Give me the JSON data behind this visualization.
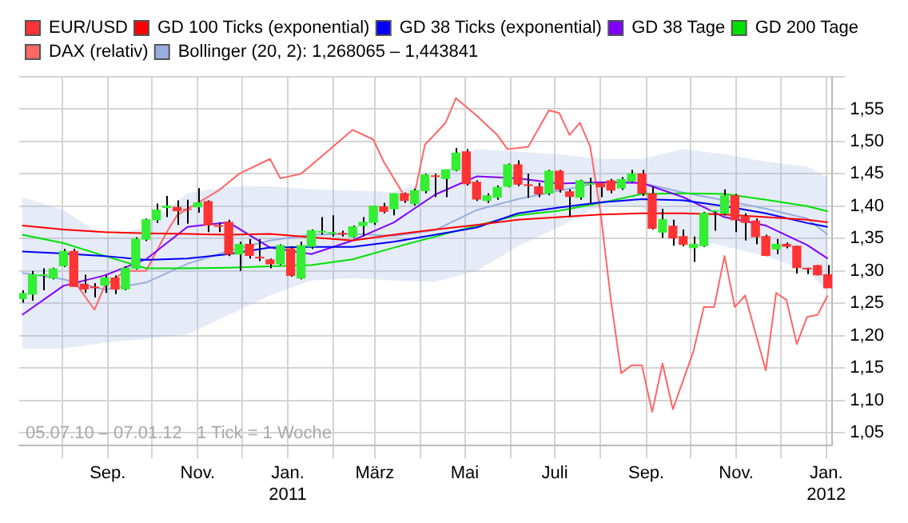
{
  "chart_data": {
    "type": "candlestick",
    "x": [
      "2010-07-05",
      "2010-07-12",
      "2010-07-19",
      "2010-07-26",
      "2010-08-02",
      "2010-08-09",
      "2010-08-16",
      "2010-08-23",
      "2010-08-30",
      "2010-09-06",
      "2010-09-13",
      "2010-09-20",
      "2010-09-27",
      "2010-10-04",
      "2010-10-11",
      "2010-10-18",
      "2010-10-25",
      "2010-11-01",
      "2010-11-08",
      "2010-11-15",
      "2010-11-22",
      "2010-11-29",
      "2010-12-06",
      "2010-12-13",
      "2010-12-20",
      "2010-12-27",
      "2011-01-03",
      "2011-01-10",
      "2011-01-17",
      "2011-01-24",
      "2011-01-31",
      "2011-02-07",
      "2011-02-14",
      "2011-02-21",
      "2011-02-28",
      "2011-03-07",
      "2011-03-14",
      "2011-03-21",
      "2011-03-28",
      "2011-04-04",
      "2011-04-11",
      "2011-04-18",
      "2011-04-25",
      "2011-05-02",
      "2011-05-09",
      "2011-05-16",
      "2011-05-23",
      "2011-05-30",
      "2011-06-06",
      "2011-06-13",
      "2011-06-20",
      "2011-06-27",
      "2011-07-04",
      "2011-07-11",
      "2011-07-18",
      "2011-07-25",
      "2011-08-01",
      "2011-08-08",
      "2011-08-15",
      "2011-08-22",
      "2011-08-29",
      "2011-09-05",
      "2011-09-12",
      "2011-09-19",
      "2011-09-26",
      "2011-10-03",
      "2011-10-10",
      "2011-10-17",
      "2011-10-24",
      "2011-10-31",
      "2011-11-07",
      "2011-11-14",
      "2011-11-21",
      "2011-11-28",
      "2011-12-05",
      "2011-12-12",
      "2011-12-19",
      "2011-12-26",
      "2012-01-02"
    ],
    "xlim": [
      "2010-07-03",
      "2012-01-05"
    ],
    "xticks": [
      {
        "value": "2010-08-01",
        "label": null
      },
      {
        "value": "2010-09-01",
        "label": "Sep."
      },
      {
        "value": "2010-10-01",
        "label": null
      },
      {
        "value": "2010-11-01",
        "label": "Nov."
      },
      {
        "value": "2010-12-01",
        "label": null
      },
      {
        "value": "2011-01-01",
        "label": "Jan.\n2011"
      },
      {
        "value": "2011-02-01",
        "label": null
      },
      {
        "value": "2011-03-01",
        "label": "März"
      },
      {
        "value": "2011-04-01",
        "label": null
      },
      {
        "value": "2011-05-01",
        "label": "Mai"
      },
      {
        "value": "2011-06-01",
        "label": null
      },
      {
        "value": "2011-07-01",
        "label": "Juli"
      },
      {
        "value": "2011-08-01",
        "label": null
      },
      {
        "value": "2011-09-01",
        "label": "Sep."
      },
      {
        "value": "2011-10-01",
        "label": null
      },
      {
        "value": "2011-11-01",
        "label": "Nov."
      },
      {
        "value": "2011-12-01",
        "label": null
      },
      {
        "value": "2012-01-01",
        "label": "Jan.\n2012"
      }
    ],
    "ylim": [
      1.03,
      1.6
    ],
    "yticks": [
      {
        "value": 1.05,
        "label": "1,05"
      },
      {
        "value": 1.1,
        "label": "1,10"
      },
      {
        "value": 1.15,
        "label": "1,15"
      },
      {
        "value": 1.2,
        "label": "1,20"
      },
      {
        "value": 1.25,
        "label": "1,25"
      },
      {
        "value": 1.3,
        "label": "1,30"
      },
      {
        "value": 1.35,
        "label": "1,35"
      },
      {
        "value": 1.4,
        "label": "1,40"
      },
      {
        "value": 1.45,
        "label": "1,45"
      },
      {
        "value": 1.5,
        "label": "1,50"
      },
      {
        "value": 1.55,
        "label": "1,55"
      },
      {
        "value": 1.6,
        "label": null
      }
    ],
    "grid": true,
    "legend": "top left",
    "annotations": [
      "05.07.10 – 07.01.12   1 Tick = 1 Woche"
    ],
    "series": [
      {
        "name": "EUR/USD",
        "color": "#ff3333",
        "colors": [
          "#33ee33",
          "#33ee33",
          "#33ee33",
          "#33ee33",
          "#33ee33",
          "#ff3333",
          "#ff3333",
          "#ff3333",
          "#33ee33",
          "#ff3333",
          "#33ee33",
          "#33ee33",
          "#33ee33",
          "#33ee33",
          "#33ee33",
          "#ff3333",
          "#ff3333",
          "#33ee33",
          "#ff3333",
          "#ff3333",
          "#ff3333",
          "#33ee33",
          "#ff3333",
          "#ff3333",
          "#ff3333",
          "#33ee33",
          "#ff3333",
          "#33ee33",
          "#33ee33",
          "#33ee33",
          "#33ee33",
          "#ff3333",
          "#33ee33",
          "#33ee33",
          "#33ee33",
          "#ff3333",
          "#33ee33",
          "#ff3333",
          "#33ee33",
          "#33ee33",
          "#ff3333",
          "#33ee33",
          "#33ee33",
          "#ff3333",
          "#ff3333",
          "#33ee33",
          "#33ee33",
          "#33ee33",
          "#ff3333",
          "#ff3333",
          "#ff3333",
          "#33ee33",
          "#ff3333",
          "#ff3333",
          "#33ee33",
          "#33ee33",
          "#ff3333",
          "#ff3333",
          "#33ee33",
          "#33ee33",
          "#ff3333",
          "#ff3333",
          "#33ee33",
          "#ff3333",
          "#ff3333",
          "#33ee33",
          "#33ee33",
          "#33ee33",
          "#33ee33",
          "#ff3333",
          "#ff3333",
          "#ff3333",
          "#ff3333",
          "#33ee33",
          "#ff3333",
          "#ff3333",
          "#ff3333",
          "#ff3333",
          "#ff3333"
        ],
        "ohlc": [
          [
            1.257,
            1.27,
            1.251,
            1.265
          ],
          [
            1.264,
            1.3,
            1.254,
            1.294
          ],
          [
            1.293,
            1.304,
            1.27,
            1.294
          ],
          [
            1.289,
            1.305,
            1.287,
            1.303
          ],
          [
            1.308,
            1.334,
            1.306,
            1.33
          ],
          [
            1.33,
            1.334,
            1.276,
            1.276
          ],
          [
            1.279,
            1.294,
            1.266,
            1.272
          ],
          [
            1.275,
            1.281,
            1.259,
            1.274
          ],
          [
            1.278,
            1.293,
            1.266,
            1.289
          ],
          [
            1.289,
            1.293,
            1.264,
            1.272
          ],
          [
            1.272,
            1.307,
            1.27,
            1.304
          ],
          [
            1.304,
            1.352,
            1.302,
            1.349
          ],
          [
            1.349,
            1.381,
            1.346,
            1.379
          ],
          [
            1.379,
            1.404,
            1.374,
            1.394
          ],
          [
            1.398,
            1.416,
            1.383,
            1.4
          ],
          [
            1.398,
            1.409,
            1.371,
            1.393
          ],
          [
            1.395,
            1.41,
            1.373,
            1.395
          ],
          [
            1.399,
            1.428,
            1.39,
            1.405
          ],
          [
            1.407,
            1.409,
            1.36,
            1.371
          ],
          [
            1.37,
            1.375,
            1.36,
            1.369
          ],
          [
            1.375,
            1.379,
            1.323,
            1.326
          ],
          [
            1.326,
            1.345,
            1.3,
            1.341
          ],
          [
            1.341,
            1.349,
            1.319,
            1.324
          ],
          [
            1.321,
            1.349,
            1.315,
            1.32
          ],
          [
            1.317,
            1.319,
            1.304,
            1.311
          ],
          [
            1.311,
            1.341,
            1.309,
            1.339
          ],
          [
            1.334,
            1.338,
            1.291,
            1.293
          ],
          [
            1.289,
            1.345,
            1.287,
            1.339
          ],
          [
            1.338,
            1.364,
            1.334,
            1.362
          ],
          [
            1.36,
            1.383,
            1.356,
            1.361
          ],
          [
            1.358,
            1.386,
            1.353,
            1.359
          ],
          [
            1.358,
            1.362,
            1.353,
            1.357
          ],
          [
            1.353,
            1.37,
            1.351,
            1.368
          ],
          [
            1.37,
            1.383,
            1.353,
            1.375
          ],
          [
            1.375,
            1.401,
            1.371,
            1.4
          ],
          [
            1.399,
            1.405,
            1.389,
            1.392
          ],
          [
            1.396,
            1.42,
            1.386,
            1.419
          ],
          [
            1.419,
            1.421,
            1.405,
            1.409
          ],
          [
            1.404,
            1.427,
            1.401,
            1.424
          ],
          [
            1.424,
            1.45,
            1.42,
            1.448
          ],
          [
            1.447,
            1.45,
            1.414,
            1.446
          ],
          [
            1.443,
            1.457,
            1.414,
            1.456
          ],
          [
            1.456,
            1.49,
            1.454,
            1.482
          ],
          [
            1.484,
            1.488,
            1.432,
            1.435
          ],
          [
            1.437,
            1.44,
            1.408,
            1.411
          ],
          [
            1.409,
            1.42,
            1.405,
            1.416
          ],
          [
            1.414,
            1.432,
            1.41,
            1.429
          ],
          [
            1.431,
            1.466,
            1.429,
            1.464
          ],
          [
            1.464,
            1.471,
            1.431,
            1.434
          ],
          [
            1.433,
            1.45,
            1.413,
            1.432
          ],
          [
            1.43,
            1.436,
            1.414,
            1.419
          ],
          [
            1.42,
            1.456,
            1.417,
            1.454
          ],
          [
            1.454,
            1.456,
            1.421,
            1.426
          ],
          [
            1.422,
            1.426,
            1.384,
            1.415
          ],
          [
            1.414,
            1.441,
            1.41,
            1.439
          ],
          [
            1.434,
            1.444,
            1.405,
            1.435
          ],
          [
            1.435,
            1.437,
            1.414,
            1.43
          ],
          [
            1.439,
            1.442,
            1.42,
            1.425
          ],
          [
            1.428,
            1.445,
            1.425,
            1.441
          ],
          [
            1.439,
            1.456,
            1.437,
            1.45
          ],
          [
            1.45,
            1.456,
            1.416,
            1.42
          ],
          [
            1.419,
            1.43,
            1.364,
            1.366
          ],
          [
            1.36,
            1.396,
            1.351,
            1.379
          ],
          [
            1.369,
            1.379,
            1.339,
            1.351
          ],
          [
            1.353,
            1.364,
            1.338,
            1.341
          ],
          [
            1.336,
            1.353,
            1.314,
            1.341
          ],
          [
            1.339,
            1.391,
            1.337,
            1.389
          ],
          [
            1.392,
            1.394,
            1.362,
            1.393
          ],
          [
            1.389,
            1.426,
            1.386,
            1.416
          ],
          [
            1.416,
            1.419,
            1.36,
            1.379
          ],
          [
            1.384,
            1.389,
            1.347,
            1.375
          ],
          [
            1.377,
            1.381,
            1.341,
            1.353
          ],
          [
            1.353,
            1.356,
            1.323,
            1.324
          ],
          [
            1.334,
            1.349,
            1.326,
            1.341
          ],
          [
            1.341,
            1.344,
            1.335,
            1.338
          ],
          [
            1.338,
            1.339,
            1.296,
            1.305
          ],
          [
            1.304,
            1.305,
            1.295,
            1.303
          ],
          [
            1.308,
            1.309,
            1.293,
            1.294
          ],
          [
            1.294,
            1.309,
            1.274,
            1.274
          ]
        ]
      },
      {
        "name": "GD 100 Ticks (exponential)",
        "type": "line",
        "color": "#ff0000",
        "x": [
          "2010-07-05",
          "2010-08-02",
          "2010-08-30",
          "2010-09-27",
          "2010-10-25",
          "2010-11-22",
          "2010-12-20",
          "2011-01-17",
          "2011-02-14",
          "2011-03-14",
          "2011-04-11",
          "2011-05-09",
          "2011-06-06",
          "2011-07-04",
          "2011-08-01",
          "2011-08-29",
          "2011-09-26",
          "2011-10-24",
          "2011-11-21",
          "2011-12-19",
          "2012-01-02"
        ],
        "values": [
          1.37,
          1.364,
          1.36,
          1.358,
          1.357,
          1.356,
          1.357,
          1.352,
          1.347,
          1.356,
          1.364,
          1.371,
          1.379,
          1.383,
          1.387,
          1.389,
          1.389,
          1.387,
          1.383,
          1.379,
          1.375
        ]
      },
      {
        "name": "GD 38 Ticks (exponential)",
        "type": "line",
        "color": "#0000ff",
        "x": [
          "2010-07-05",
          "2010-08-02",
          "2010-08-30",
          "2010-09-27",
          "2010-10-25",
          "2010-11-22",
          "2010-12-20",
          "2011-01-17",
          "2011-02-14",
          "2011-03-14",
          "2011-04-11",
          "2011-05-09",
          "2011-06-06",
          "2011-07-04",
          "2011-08-01",
          "2011-08-29",
          "2011-09-26",
          "2011-10-24",
          "2011-11-21",
          "2011-12-19",
          "2012-01-02"
        ],
        "values": [
          1.33,
          1.327,
          1.323,
          1.317,
          1.319,
          1.326,
          1.336,
          1.337,
          1.337,
          1.345,
          1.356,
          1.367,
          1.389,
          1.398,
          1.406,
          1.411,
          1.409,
          1.4,
          1.389,
          1.374,
          1.368
        ]
      },
      {
        "name": "GD 38 Tage",
        "type": "line",
        "color": "#8000ff",
        "x": [
          "2010-07-05",
          "2010-08-02",
          "2010-08-30",
          "2010-09-27",
          "2010-10-25",
          "2010-11-22",
          "2010-12-20",
          "2011-01-17",
          "2011-02-14",
          "2011-03-14",
          "2011-04-11",
          "2011-05-09",
          "2011-06-06",
          "2011-07-04",
          "2011-08-01",
          "2011-08-29",
          "2011-09-26",
          "2011-10-24",
          "2011-11-21",
          "2011-12-19",
          "2012-01-02"
        ],
        "values": [
          1.232,
          1.277,
          1.293,
          1.318,
          1.368,
          1.375,
          1.336,
          1.326,
          1.347,
          1.375,
          1.418,
          1.446,
          1.443,
          1.435,
          1.437,
          1.436,
          1.414,
          1.383,
          1.37,
          1.34,
          1.319
        ]
      },
      {
        "name": "GD 200 Tage",
        "type": "line",
        "color": "#00e000",
        "x": [
          "2010-07-05",
          "2010-08-02",
          "2010-08-30",
          "2010-09-27",
          "2010-10-25",
          "2010-11-22",
          "2010-12-20",
          "2011-01-17",
          "2011-02-14",
          "2011-03-14",
          "2011-04-11",
          "2011-05-09",
          "2011-06-06",
          "2011-07-04",
          "2011-08-01",
          "2011-08-29",
          "2011-09-26",
          "2011-10-24",
          "2011-11-21",
          "2011-12-19",
          "2012-01-02"
        ],
        "values": [
          1.356,
          1.343,
          1.323,
          1.304,
          1.304,
          1.305,
          1.307,
          1.309,
          1.318,
          1.336,
          1.353,
          1.37,
          1.386,
          1.393,
          1.405,
          1.419,
          1.42,
          1.419,
          1.41,
          1.4,
          1.392
        ]
      },
      {
        "name": "DAX (relativ)",
        "type": "line",
        "color": "#ff6666",
        "x": [
          "2010-08-09",
          "2010-08-23",
          "2010-08-30",
          "2010-09-13",
          "2010-09-27",
          "2010-10-11",
          "2010-10-18",
          "2010-11-15",
          "2010-11-29",
          "2010-12-20",
          "2010-12-27",
          "2011-01-10",
          "2011-01-24",
          "2011-02-14",
          "2011-02-28",
          "2011-03-07",
          "2011-03-21",
          "2011-03-28",
          "2011-04-04",
          "2011-04-18",
          "2011-04-25",
          "2011-05-09",
          "2011-05-23",
          "2011-05-30",
          "2011-06-13",
          "2011-06-27",
          "2011-07-04",
          "2011-07-11",
          "2011-07-18",
          "2011-07-25",
          "2011-08-01",
          "2011-08-08",
          "2011-08-15",
          "2011-08-22",
          "2011-08-29",
          "2011-09-05",
          "2011-09-12",
          "2011-09-19",
          "2011-10-03",
          "2011-10-10",
          "2011-10-17",
          "2011-10-24",
          "2011-10-31",
          "2011-11-07",
          "2011-11-21",
          "2011-11-28",
          "2011-12-05",
          "2011-12-12",
          "2011-12-19",
          "2011-12-26",
          "2012-01-02"
        ],
        "values": [
          1.285,
          1.24,
          1.277,
          1.3,
          1.3,
          1.36,
          1.386,
          1.424,
          1.45,
          1.473,
          1.443,
          1.45,
          1.477,
          1.518,
          1.503,
          1.469,
          1.416,
          1.42,
          1.495,
          1.529,
          1.567,
          1.54,
          1.51,
          1.488,
          1.492,
          1.548,
          1.544,
          1.51,
          1.529,
          1.492,
          1.39,
          1.255,
          1.142,
          1.154,
          1.154,
          1.082,
          1.157,
          1.086,
          1.176,
          1.244,
          1.244,
          1.323,
          1.244,
          1.262,
          1.146,
          1.266,
          1.255,
          1.187,
          1.229,
          1.232,
          1.262
        ]
      },
      {
        "name": "Bollinger (20, 2): 1,268065 – 1,443841",
        "type": "line",
        "color": "#98aee0",
        "x": [
          "2010-07-05",
          "2010-08-02",
          "2010-08-30",
          "2010-09-27",
          "2010-10-25",
          "2010-11-22",
          "2010-12-20",
          "2011-01-17",
          "2011-02-14",
          "2011-03-14",
          "2011-04-11",
          "2011-05-09",
          "2011-06-06",
          "2011-07-04",
          "2011-08-01",
          "2011-08-29",
          "2011-09-26",
          "2011-10-24",
          "2011-11-21",
          "2011-12-19",
          "2012-01-02"
        ],
        "values": [
          1.297,
          1.287,
          1.271,
          1.282,
          1.311,
          1.331,
          1.347,
          1.356,
          1.357,
          1.354,
          1.363,
          1.394,
          1.411,
          1.424,
          1.437,
          1.436,
          1.421,
          1.409,
          1.396,
          1.381,
          1.356
        ],
        "lower": [
          1.18,
          1.18,
          1.189,
          1.195,
          1.202,
          1.232,
          1.262,
          1.285,
          1.289,
          1.285,
          1.283,
          1.3,
          1.338,
          1.368,
          1.401,
          1.398,
          1.353,
          1.338,
          1.323,
          1.3,
          1.268
        ],
        "upper": [
          1.414,
          1.394,
          1.353,
          1.368,
          1.42,
          1.43,
          1.431,
          1.426,
          1.424,
          1.422,
          1.443,
          1.488,
          1.484,
          1.48,
          1.473,
          1.473,
          1.488,
          1.48,
          1.469,
          1.461,
          1.444
        ]
      }
    ]
  }
}
